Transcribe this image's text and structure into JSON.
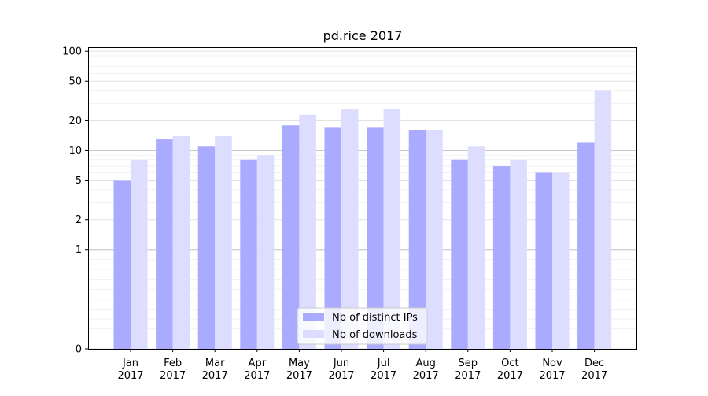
{
  "chart_data": {
    "type": "bar",
    "title": "pd.rice 2017",
    "xlabel": "",
    "ylabel": "",
    "categories": [
      [
        "Jan",
        "2017"
      ],
      [
        "Feb",
        "2017"
      ],
      [
        "Mar",
        "2017"
      ],
      [
        "Apr",
        "2017"
      ],
      [
        "May",
        "2017"
      ],
      [
        "Jun",
        "2017"
      ],
      [
        "Jul",
        "2017"
      ],
      [
        "Aug",
        "2017"
      ],
      [
        "Sep",
        "2017"
      ],
      [
        "Oct",
        "2017"
      ],
      [
        "Nov",
        "2017"
      ],
      [
        "Dec",
        "2017"
      ]
    ],
    "series": [
      {
        "name": "Nb of distinct IPs",
        "color": "#aaaaff",
        "values": [
          5,
          13,
          11,
          8,
          18,
          17,
          17,
          16,
          8,
          7,
          6,
          12
        ]
      },
      {
        "name": "Nb of downloads",
        "color": "#ddddff",
        "values": [
          8,
          14,
          14,
          9,
          23,
          26,
          26,
          16,
          11,
          8,
          6,
          40
        ]
      }
    ],
    "yscale": "symlog",
    "ylim": [
      0,
      110
    ],
    "yticks": [
      0,
      1,
      2,
      5,
      10,
      20,
      50,
      100
    ],
    "grid": true,
    "legend_position": "lower center"
  }
}
